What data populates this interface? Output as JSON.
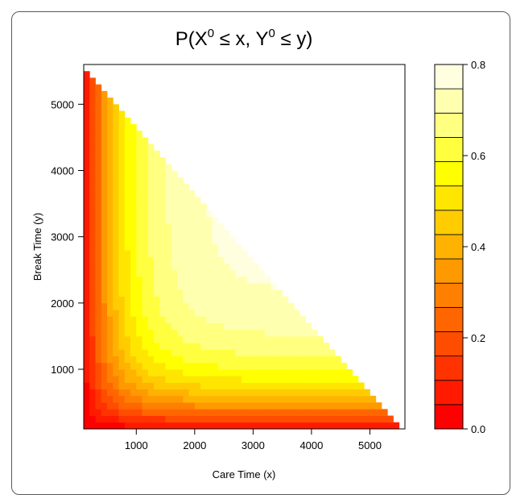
{
  "chart_data": {
    "type": "heatmap",
    "title": "P(X⁰ ≤ x, Y⁰ ≤ y)",
    "title_parts": {
      "p": "P(X",
      "sup1": "0",
      "mid": " ≤ x, Y",
      "sup2": "0",
      "end": " ≤ y)"
    },
    "xlabel": "Care Time (x)",
    "ylabel": "Break Time (y)",
    "xlim": [
      100,
      5600
    ],
    "ylim": [
      100,
      5600
    ],
    "x_ticks": [
      1000,
      2000,
      3000,
      4000,
      5000
    ],
    "y_ticks": [
      1000,
      2000,
      3000,
      4000,
      5000
    ],
    "region": "x + y ≤ 5600",
    "color_scale": {
      "zlim": [
        0.0,
        0.8
      ],
      "ticks": [
        0.0,
        0.2,
        0.4,
        0.6,
        0.8
      ],
      "bins": [
        "#ff0000",
        "#ff1a00",
        "#ff3300",
        "#ff4d00",
        "#ff6600",
        "#ff8000",
        "#ff9900",
        "#ffb300",
        "#ffcc00",
        "#ffe600",
        "#ffff00",
        "#ffff40",
        "#ffff80",
        "#ffffb0",
        "#ffffe0"
      ]
    }
  }
}
